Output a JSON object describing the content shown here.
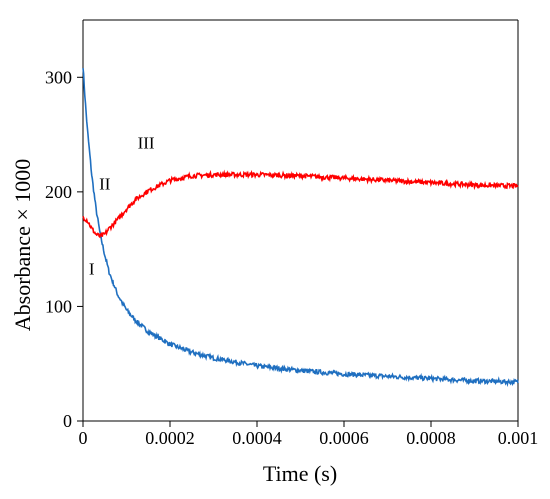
{
  "chart_data": {
    "type": "line",
    "xlabel": "Time (s)",
    "ylabel": "Absorbance × 1000",
    "xlim": [
      0,
      0.001
    ],
    "ylim": [
      0,
      350
    ],
    "xticks": [
      0,
      0.0002,
      0.0004,
      0.0006,
      0.0008,
      0.001
    ],
    "xtick_labels": [
      "0",
      "0.0002",
      "0.0004",
      "0.0006",
      "0.0008",
      "0.001"
    ],
    "yticks": [
      0,
      100,
      200,
      300
    ],
    "ytick_labels": [
      "0",
      "100",
      "200",
      "300"
    ],
    "grid": false,
    "series": [
      {
        "color": "#1f6fc0",
        "x": [
          0,
          5e-06,
          1e-05,
          2e-05,
          3e-05,
          4e-05,
          5e-05,
          6e-05,
          8e-05,
          0.0001,
          0.00012,
          0.00015,
          0.0002,
          0.00025,
          0.0003,
          0.0004,
          0.0005,
          0.0006,
          0.0007,
          0.0008,
          0.0009,
          0.001
        ],
        "y": [
          310,
          280,
          255,
          215,
          185,
          162,
          145,
          130,
          110,
          97,
          88,
          78,
          67,
          60,
          55,
          48,
          44,
          41,
          39,
          37,
          35,
          34
        ]
      },
      {
        "color": "#ff0000",
        "x": [
          0,
          1e-05,
          2e-05,
          3e-05,
          4e-05,
          5e-05,
          6e-05,
          8e-05,
          0.0001,
          0.00012,
          0.00015,
          0.0002,
          0.00025,
          0.0003,
          0.00035,
          0.0004,
          0.0005,
          0.0006,
          0.0007,
          0.0008,
          0.0009,
          0.001
        ],
        "y": [
          178,
          175,
          168,
          163,
          161,
          163,
          168,
          176,
          185,
          193,
          201,
          210,
          214,
          215,
          215,
          215,
          214,
          212,
          210,
          208,
          206,
          205
        ]
      }
    ],
    "annotations": [
      {
        "text": "I",
        "x": 2e-05,
        "y": 128
      },
      {
        "text": "II",
        "x": 5e-05,
        "y": 202
      },
      {
        "text": "III",
        "x": 0.000145,
        "y": 238
      }
    ]
  }
}
